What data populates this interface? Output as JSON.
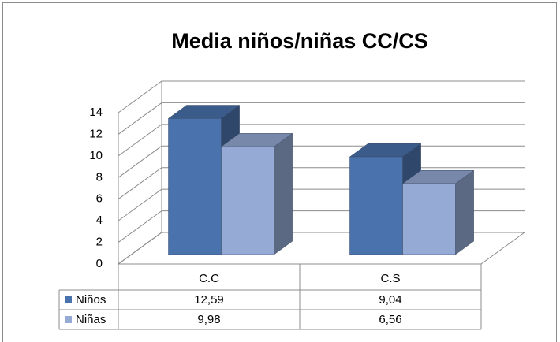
{
  "chart_data": {
    "type": "bar3d",
    "title": "Media niños/niñas CC/CS",
    "categories": [
      "C.C",
      "C.S"
    ],
    "series": [
      {
        "name": "Niños",
        "color": "#4a72ad",
        "values": [
          12.59,
          9.04
        ],
        "value_labels": [
          "12,59",
          "9,04"
        ]
      },
      {
        "name": "Niñas",
        "color": "#95aad4",
        "values": [
          9.98,
          6.56
        ],
        "value_labels": [
          "9,98",
          "6,56"
        ]
      }
    ],
    "ylim": [
      0,
      14
    ],
    "yticks": [
      0,
      2,
      4,
      6,
      8,
      10,
      12,
      14
    ],
    "grid": true
  }
}
